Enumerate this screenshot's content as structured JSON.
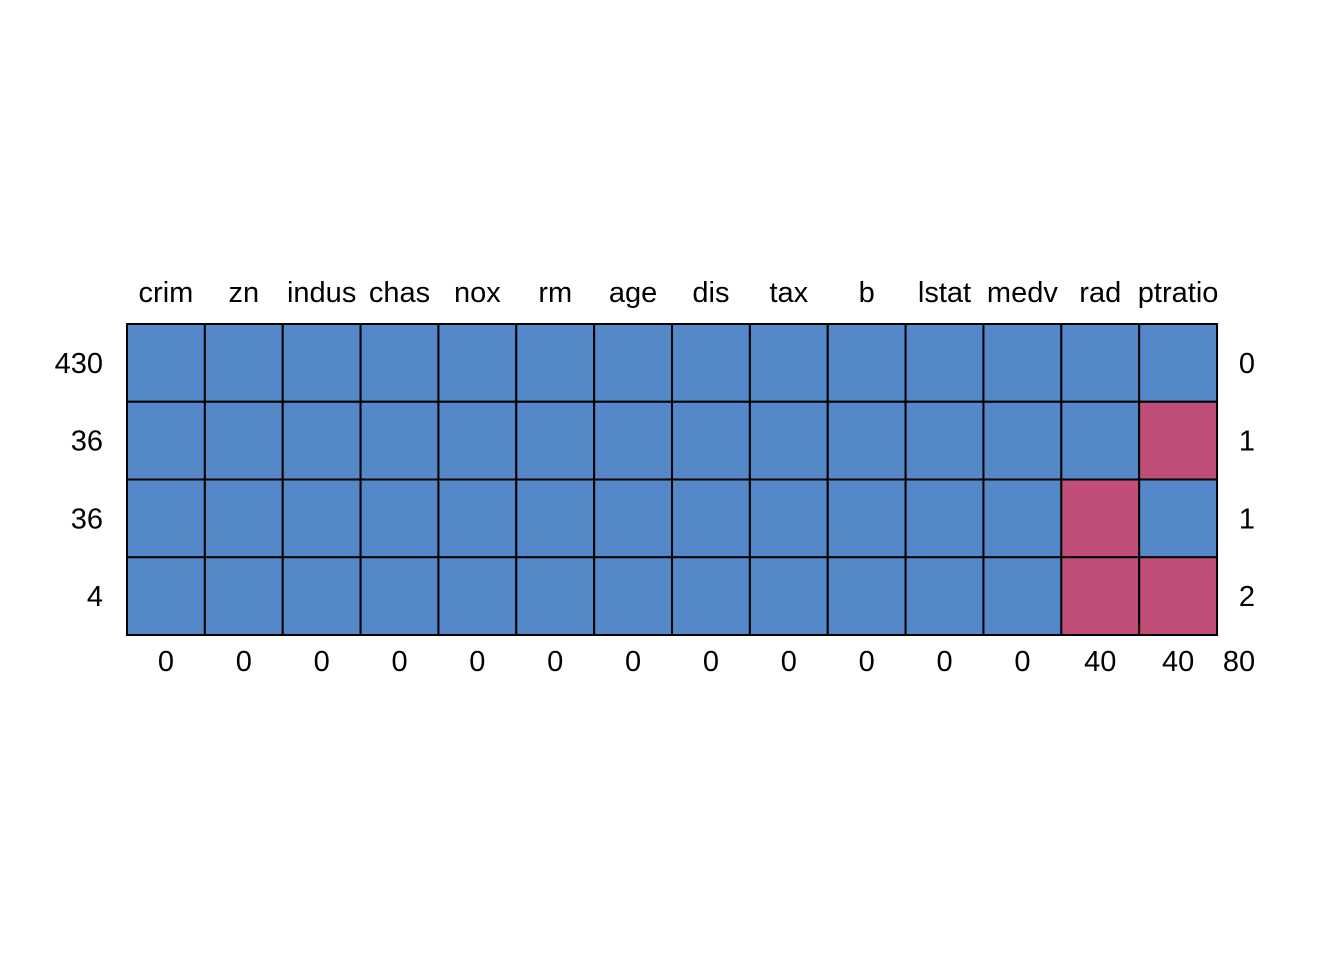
{
  "chart_data": {
    "type": "heatmap",
    "title": "",
    "variables": [
      "crim",
      "zn",
      "indus",
      "chas",
      "nox",
      "rm",
      "age",
      "dis",
      "tax",
      "b",
      "lstat",
      "medv",
      "rad",
      "ptratio"
    ],
    "rows": [
      {
        "count": "430",
        "missing_vars": "0",
        "pattern": [
          1,
          1,
          1,
          1,
          1,
          1,
          1,
          1,
          1,
          1,
          1,
          1,
          1,
          1
        ]
      },
      {
        "count": "36",
        "missing_vars": "1",
        "pattern": [
          1,
          1,
          1,
          1,
          1,
          1,
          1,
          1,
          1,
          1,
          1,
          1,
          1,
          0
        ]
      },
      {
        "count": "36",
        "missing_vars": "1",
        "pattern": [
          1,
          1,
          1,
          1,
          1,
          1,
          1,
          1,
          1,
          1,
          1,
          1,
          0,
          1
        ]
      },
      {
        "count": "4",
        "missing_vars": "2",
        "pattern": [
          1,
          1,
          1,
          1,
          1,
          1,
          1,
          1,
          1,
          1,
          1,
          1,
          0,
          0
        ]
      }
    ],
    "column_missing": [
      "0",
      "0",
      "0",
      "0",
      "0",
      "0",
      "0",
      "0",
      "0",
      "0",
      "0",
      "0",
      "40",
      "40"
    ],
    "total_missing": "80",
    "colors": {
      "observed": "#5488C8",
      "missing": "#C04E78",
      "border": "#000000"
    }
  }
}
